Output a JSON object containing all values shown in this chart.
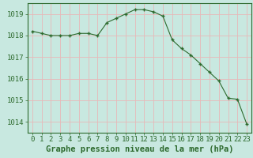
{
  "x": [
    0,
    1,
    2,
    3,
    4,
    5,
    6,
    7,
    8,
    9,
    10,
    11,
    12,
    13,
    14,
    15,
    16,
    17,
    18,
    19,
    20,
    21,
    22,
    23
  ],
  "y": [
    1018.2,
    1018.1,
    1018.0,
    1018.0,
    1018.0,
    1018.1,
    1018.1,
    1018.0,
    1018.6,
    1018.8,
    1019.0,
    1019.2,
    1019.2,
    1019.1,
    1018.9,
    1017.8,
    1017.4,
    1017.1,
    1016.7,
    1016.3,
    1015.9,
    1015.1,
    1015.05,
    1013.9
  ],
  "line_color": "#2d6a2d",
  "marker": "+",
  "marker_color": "#2d6a2d",
  "bg_color": "#c8e8e0",
  "grid_color": "#e8b8b8",
  "tick_color": "#2d6a2d",
  "label_color": "#2d6a2d",
  "xlabel": "Graphe pression niveau de la mer (hPa)",
  "ylim": [
    1013.5,
    1019.5
  ],
  "xlim": [
    -0.5,
    23.5
  ],
  "yticks": [
    1014,
    1015,
    1016,
    1017,
    1018,
    1019
  ],
  "xticks": [
    0,
    1,
    2,
    3,
    4,
    5,
    6,
    7,
    8,
    9,
    10,
    11,
    12,
    13,
    14,
    15,
    16,
    17,
    18,
    19,
    20,
    21,
    22,
    23
  ],
  "font_size": 6.5,
  "xlabel_font_size": 7.5
}
